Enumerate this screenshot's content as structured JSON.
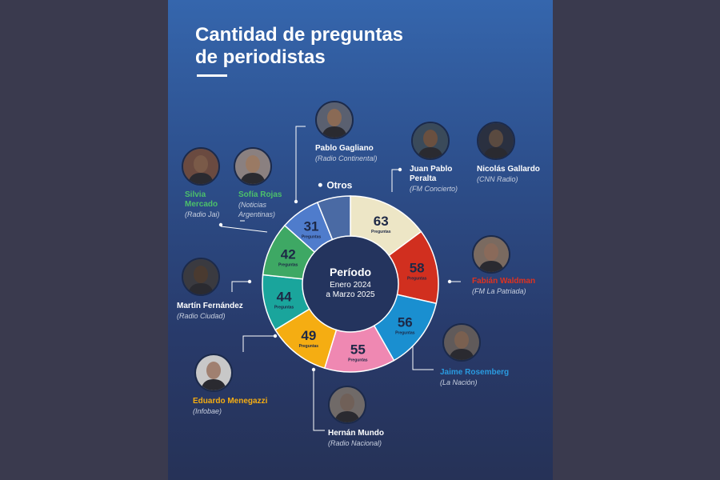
{
  "title": {
    "line1": "Cantidad de preguntas",
    "line2": "de periodistas"
  },
  "center": {
    "title": "Período",
    "line1": "Enero 2024",
    "line2": "a Marzo 2025"
  },
  "unit_label": "Preguntas",
  "others_label": "Otros",
  "chart_data": {
    "type": "pie",
    "title": "Cantidad de preguntas de periodistas",
    "categories": [
      "Juan Pablo Peralta / Nicolás Gallardo",
      "Fabián Waldman",
      "Jaime Rosemberg",
      "Hernán Mundo",
      "Eduardo Menegazzi",
      "Martín Fernández",
      "Silvia Mercado / Sofía Rojas",
      "Pablo Gagliano",
      "Otros"
    ],
    "values": [
      63,
      58,
      56,
      55,
      49,
      44,
      42,
      31,
      null
    ],
    "colors": [
      "#ede6c6",
      "#d12f1f",
      "#1a8fd0",
      "#ef88b2",
      "#f5ad12",
      "#1aa59c",
      "#3ea864",
      "#4f7ccc",
      "#4a6aa4"
    ]
  },
  "journalists": [
    {
      "name": "Pablo Gagliano",
      "medium": "(Radio Continental)",
      "color": "#ffffff"
    },
    {
      "name": "Juan Pablo",
      "name2": "Peralta",
      "medium": "(FM Concierto)",
      "color": "#ffffff"
    },
    {
      "name": "Nicolás Gallardo",
      "medium": "(CNN Radio)",
      "color": "#ffffff"
    },
    {
      "name": "Silvia",
      "name2": "Mercado",
      "medium": "(Radio Jai)",
      "color": "#4cc06a"
    },
    {
      "name": "Sofía Rojas",
      "medium": "(Noticias",
      "medium2": "Argentinas)",
      "color": "#4cc06a"
    },
    {
      "name": "Fabián Waldman",
      "medium": "(FM La Patriada)",
      "color": "#e0321f"
    },
    {
      "name": "Martín Fernández",
      "medium": "(Radio Ciudad)",
      "color": "#ffffff"
    },
    {
      "name": "Jaime Rosemberg",
      "medium": "(La Nación)",
      "color": "#2a9be0"
    },
    {
      "name": "Eduardo Menegazzi",
      "medium": "(Infobae)",
      "color": "#f5ad12"
    },
    {
      "name": "Hernán Mundo",
      "medium": "(Radio Nacional)",
      "color": "#ffffff"
    }
  ]
}
